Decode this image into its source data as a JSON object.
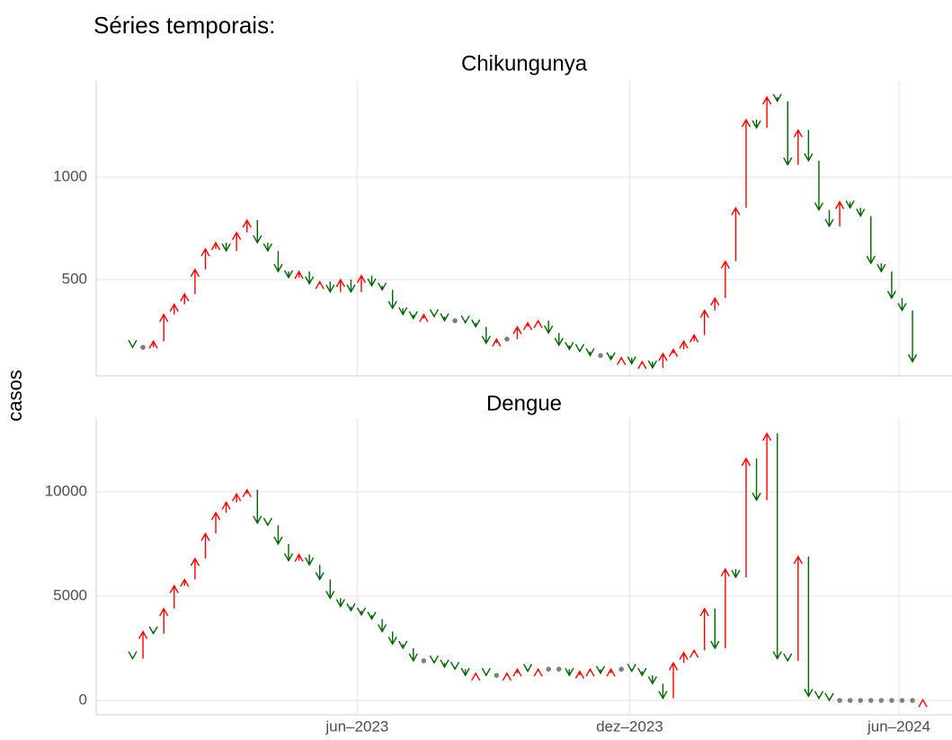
{
  "title": "Séries temporais:",
  "y_label": "casos",
  "chart_data": [
    {
      "type": "arrow",
      "title": "Chikungunya",
      "up_color": "#ff0000",
      "down_color": "#006400",
      "flat_color": "#808080",
      "x": [
        0,
        1,
        2,
        3,
        4,
        5,
        6,
        7,
        8,
        9,
        10,
        11,
        12,
        13,
        14,
        15,
        16,
        17,
        18,
        19,
        20,
        21,
        22,
        23,
        24,
        25,
        26,
        27,
        28,
        29,
        30,
        31,
        32,
        33,
        34,
        35,
        36,
        37,
        38,
        39,
        40,
        41,
        42,
        43,
        44,
        45,
        46,
        47,
        48,
        49,
        50,
        51,
        52,
        53,
        54,
        55,
        56,
        57,
        58,
        59,
        60,
        61,
        62,
        63,
        64,
        65,
        66,
        67,
        68,
        69,
        70,
        71,
        72,
        73,
        74,
        75
      ],
      "values": [
        170,
        170,
        200,
        330,
        380,
        430,
        550,
        650,
        680,
        640,
        730,
        790,
        680,
        640,
        540,
        510,
        540,
        480,
        490,
        440,
        500,
        440,
        520,
        470,
        450,
        360,
        330,
        310,
        330,
        320,
        300,
        300,
        290,
        270,
        190,
        210,
        210,
        270,
        290,
        300,
        240,
        180,
        160,
        150,
        130,
        130,
        110,
        120,
        90,
        100,
        70,
        140,
        160,
        200,
        230,
        350,
        410,
        590,
        850,
        1280,
        1240,
        1390,
        1370,
        1060,
        1230,
        1080,
        840,
        760,
        880,
        850,
        810,
        580,
        540,
        410,
        350,
        100
      ],
      "xlim": [
        -3.5,
        78.8
      ],
      "xticks": [
        21.6,
        47.8,
        73.7
      ],
      "ylim": [
        31,
        1469
      ],
      "yticks": [
        500,
        1000
      ],
      "grid": true
    },
    {
      "type": "arrow",
      "title": "Dengue",
      "up_color": "#ff0000",
      "down_color": "#006400",
      "flat_color": "#808080",
      "x": [
        0,
        1,
        2,
        3,
        4,
        5,
        6,
        7,
        8,
        9,
        10,
        11,
        12,
        13,
        14,
        15,
        16,
        17,
        18,
        19,
        20,
        21,
        22,
        23,
        24,
        25,
        26,
        27,
        28,
        29,
        30,
        31,
        32,
        33,
        34,
        35,
        36,
        37,
        38,
        39,
        40,
        41,
        42,
        43,
        44,
        45,
        46,
        47,
        48,
        49,
        50,
        51,
        52,
        53,
        54,
        55,
        56,
        57,
        58,
        59,
        60,
        61,
        62,
        63,
        64,
        65,
        66,
        67,
        68,
        69,
        70,
        71,
        72,
        73,
        74,
        75,
        76
      ],
      "values": [
        2000,
        3300,
        3200,
        4400,
        5500,
        5800,
        6800,
        8000,
        9000,
        9500,
        9900,
        10100,
        8500,
        8400,
        7500,
        6700,
        7000,
        6500,
        5800,
        4900,
        4500,
        4300,
        4100,
        3900,
        3300,
        2700,
        2500,
        1900,
        1900,
        1800,
        1600,
        1500,
        1200,
        1300,
        1200,
        1200,
        1300,
        1500,
        1400,
        1500,
        1500,
        1500,
        1200,
        1400,
        1500,
        1300,
        1500,
        1500,
        1400,
        1200,
        800,
        100,
        1800,
        2300,
        2400,
        4400,
        2500,
        6300,
        5900,
        11600,
        9600,
        12800,
        2000,
        1900,
        6900,
        200,
        100,
        0,
        0,
        0,
        0,
        0,
        0,
        0,
        0,
        0,
        30
      ],
      "xlim": [
        -3.5,
        78.8
      ],
      "xticks": [
        {
          "value": 21.6,
          "label": "jun–2023"
        },
        {
          "value": 47.8,
          "label": "dez–2023"
        },
        {
          "value": 73.7,
          "label": "jun–2024"
        }
      ],
      "ylim": [
        -690,
        13534
      ],
      "yticks": [
        0,
        5000,
        10000
      ],
      "grid": true
    }
  ]
}
